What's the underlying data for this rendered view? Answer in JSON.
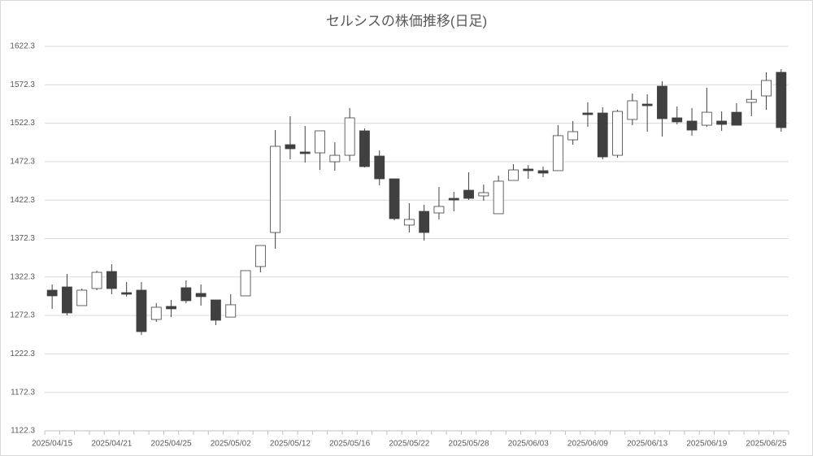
{
  "chart_data": {
    "type": "candlestick",
    "title": "セルシスの株価推移(日足)",
    "categories": [
      "2025/04/15",
      null,
      null,
      null,
      "2025/04/21",
      null,
      null,
      null,
      "2025/04/25",
      null,
      null,
      null,
      "2025/05/02",
      null,
      null,
      null,
      "2025/05/12",
      null,
      null,
      null,
      "2025/05/16",
      null,
      null,
      null,
      "2025/05/22",
      null,
      null,
      null,
      "2025/05/28",
      null,
      null,
      null,
      "2025/06/03",
      null,
      null,
      null,
      "2025/06/09",
      null,
      null,
      null,
      "2025/06/13",
      null,
      null,
      null,
      "2025/06/19",
      null,
      null,
      null,
      "2025/06/25",
      null
    ],
    "open": [
      1305.2,
      1309.4,
      1285.1,
      1307.3,
      1329.5,
      1302.0,
      1305.2,
      1267.1,
      1284.1,
      1308.4,
      1301.0,
      1292.5,
      1270.2,
      1297.8,
      1335.9,
      1380.2,
      1494.4,
      1484.9,
      1483.8,
      1472.2,
      1480.6,
      1512.4,
      1479.6,
      1450.0,
      1389.8,
      1407.7,
      1405.6,
      1424.6,
      1435.2,
      1427.8,
      1404.6,
      1447.9,
      1462.7,
      1460.6,
      1460.6,
      1500.7,
      1535.6,
      1535.6,
      1480.6,
      1527.2,
      1547.2,
      1570.5,
      1529.3,
      1525.1,
      1519.7,
      1525.1,
      1536.6,
      1549.4,
      1557.8,
      1588.5
    ],
    "high": [
      1312.6,
      1326.3,
      1307.3,
      1330.6,
      1339.0,
      1315.8,
      1315.8,
      1288.3,
      1292.5,
      1317.9,
      1312.6,
      1292.5,
      1299.9,
      1330.6,
      1363.3,
      1513.4,
      1531.4,
      1518.7,
      1512.4,
      1497.6,
      1542.0,
      1515.5,
      1487.0,
      1450.0,
      1418.3,
      1416.2,
      1439.4,
      1433.1,
      1458.5,
      1442.6,
      1454.3,
      1469.0,
      1468.0,
      1465.9,
      1519.7,
      1525.1,
      1549.4,
      1543.0,
      1539.8,
      1561.0,
      1559.9,
      1576.8,
      1544.1,
      1542.0,
      1568.4,
      1537.7,
      1548.3,
      1565.2,
      1588.5,
      1592.7
    ],
    "low": [
      1280.9,
      1272.4,
      1285.1,
      1305.2,
      1299.9,
      1296.8,
      1247.1,
      1264.0,
      1270.2,
      1288.3,
      1285.1,
      1259.7,
      1270.2,
      1297.8,
      1328.4,
      1359.1,
      1475.4,
      1471.1,
      1461.6,
      1460.6,
      1473.3,
      1464.8,
      1441.6,
      1396.1,
      1380.2,
      1369.7,
      1397.2,
      1407.7,
      1422.5,
      1421.5,
      1404.6,
      1447.9,
      1450.0,
      1452.1,
      1460.6,
      1494.4,
      1517.6,
      1475.4,
      1477.5,
      1519.7,
      1511.3,
      1505.0,
      1520.8,
      1506.1,
      1517.6,
      1512.4,
      1519.7,
      1531.4,
      1539.8,
      1511.3
    ],
    "close": [
      1297.8,
      1275.6,
      1305.2,
      1328.4,
      1307.3,
      1299.9,
      1251.3,
      1283.0,
      1280.9,
      1291.5,
      1296.8,
      1266.1,
      1286.2,
      1330.6,
      1363.3,
      1492.3,
      1489.1,
      1482.8,
      1512.4,
      1480.6,
      1529.3,
      1465.9,
      1450.0,
      1398.2,
      1397.2,
      1380.2,
      1414.1,
      1422.5,
      1424.6,
      1432.0,
      1446.9,
      1461.6,
      1460.6,
      1457.4,
      1506.1,
      1511.3,
      1533.5,
      1478.5,
      1537.7,
      1551.5,
      1545.1,
      1528.2,
      1524.0,
      1513.4,
      1536.6,
      1520.8,
      1519.7,
      1553.4,
      1577.9,
      1516.6
    ],
    "up_color": "#ffffff",
    "down_color": "#404040",
    "ylim": [
      1122.3,
      1622.3
    ],
    "yticks": [
      1122.3,
      1172.3,
      1222.3,
      1272.3,
      1322.3,
      1372.3,
      1422.3,
      1472.3,
      1522.3,
      1572.3,
      1622.3
    ],
    "grid": true
  }
}
